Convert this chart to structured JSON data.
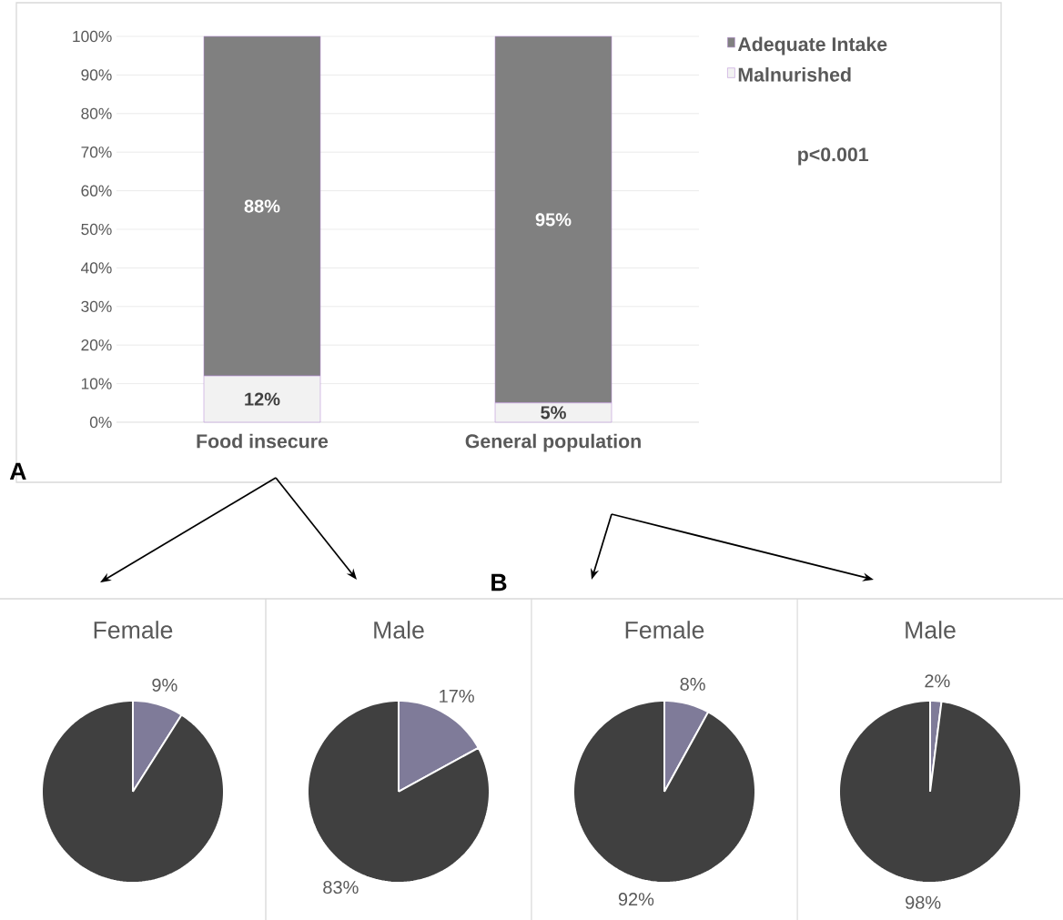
{
  "chart_data": [
    {
      "type": "bar",
      "stacked": true,
      "categories": [
        "Food insecure",
        "General population"
      ],
      "ylim": [
        0,
        100
      ],
      "yticks": [
        {
          "value": 0,
          "label": "0%"
        },
        {
          "value": 10,
          "label": "10%"
        },
        {
          "value": 20,
          "label": "20%"
        },
        {
          "value": 30,
          "label": "30%"
        },
        {
          "value": 40,
          "label": "40%"
        },
        {
          "value": 50,
          "label": "50%"
        },
        {
          "value": 60,
          "label": "60%"
        },
        {
          "value": 70,
          "label": "70%"
        },
        {
          "value": 80,
          "label": "80%"
        },
        {
          "value": 90,
          "label": "90%"
        },
        {
          "value": 100,
          "label": "100%"
        }
      ],
      "grid": "y",
      "legend": "top right",
      "annotations": [
        "p<0.001",
        "A"
      ],
      "series": [
        {
          "name": "Malnurished",
          "color": "#f2f2f2",
          "values": [
            12,
            5
          ],
          "value_labels": [
            "12%",
            "5%"
          ]
        },
        {
          "name": "Adequate Intake",
          "color": "#808080",
          "values": [
            88,
            95
          ],
          "value_labels": [
            "88%",
            "95%"
          ]
        }
      ]
    },
    {
      "type": "pie",
      "title": "Female",
      "categories": [
        null,
        null
      ],
      "values": [
        9,
        91
      ],
      "colors": [
        "#7f7b99",
        "#404040"
      ],
      "value_labels": [
        "9%",
        null
      ]
    },
    {
      "type": "pie",
      "title": "Male",
      "categories": [
        null,
        null
      ],
      "values": [
        17,
        83
      ],
      "colors": [
        "#7f7b99",
        "#404040"
      ],
      "value_labels": [
        "17%",
        "83%"
      ]
    },
    {
      "type": "pie",
      "title": "Female",
      "categories": [
        null,
        null
      ],
      "values": [
        8,
        92
      ],
      "colors": [
        "#7f7b99",
        "#404040"
      ],
      "value_labels": [
        "8%",
        "92%"
      ],
      "annotations": [
        "B"
      ]
    },
    {
      "type": "pie",
      "title": "Male",
      "categories": [
        null,
        null
      ],
      "values": [
        2,
        98
      ],
      "colors": [
        "#7f7b99",
        "#404040"
      ],
      "value_labels": [
        "2%",
        "98%"
      ]
    }
  ]
}
